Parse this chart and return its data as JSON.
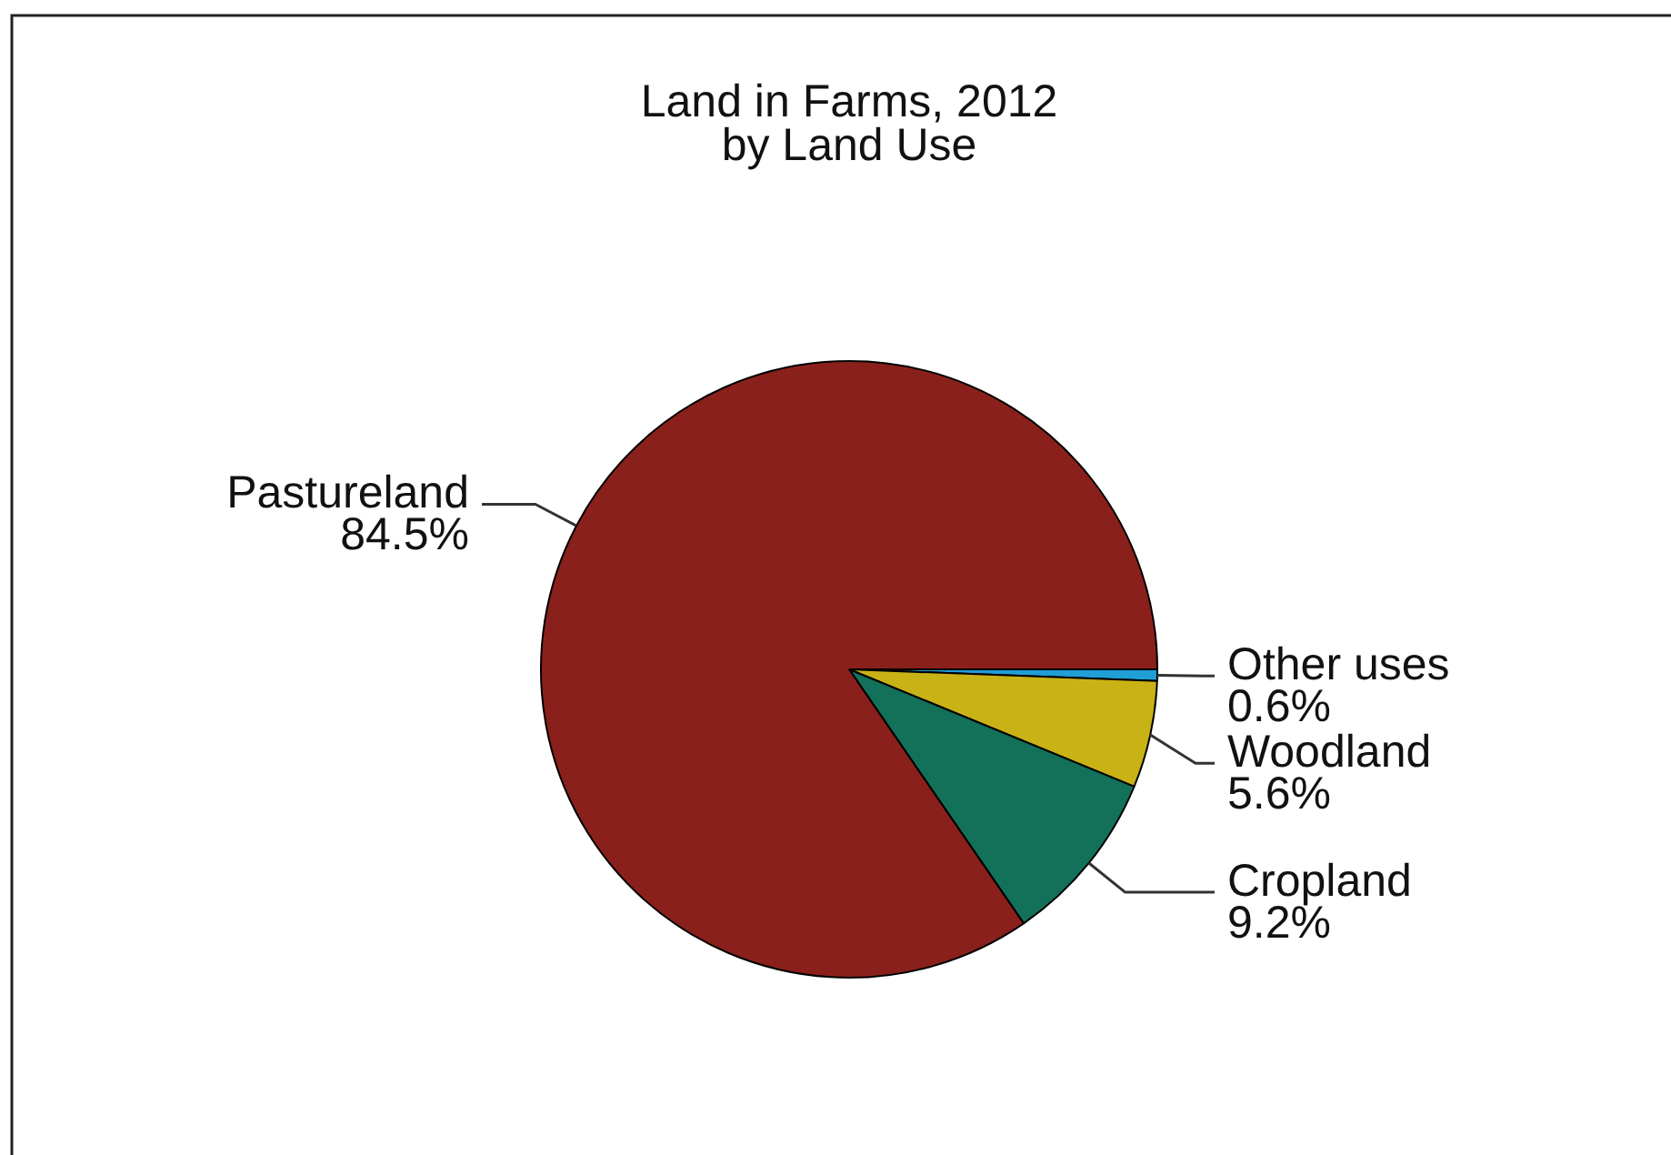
{
  "chart_data": {
    "type": "pie",
    "title": "Land in Farms, 2012",
    "subtitle": "by Land Use",
    "categories": [
      "Other uses",
      "Woodland",
      "Cropland",
      "Pastureland"
    ],
    "values": [
      0.6,
      5.6,
      9.2,
      84.5
    ],
    "colors": [
      "#1f9fd6",
      "#c9b216",
      "#137059",
      "#8a201b"
    ],
    "value_labels": [
      "0.6%",
      "5.6%",
      "9.2%",
      "84.5%"
    ]
  }
}
